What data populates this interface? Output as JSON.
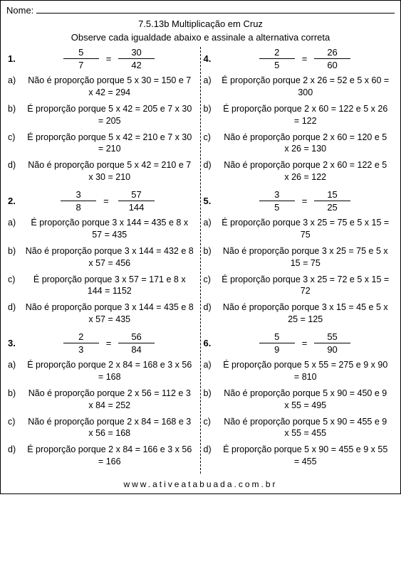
{
  "nameLabel": "Nome:",
  "title": "7.5.13b Multiplicação em Cruz",
  "subtitle": "Observe cada igualdade abaixo e assinale a alternativa correta",
  "optionLabels": [
    "a)",
    "b)",
    "c)",
    "d)"
  ],
  "eqSign": "=",
  "questions": [
    {
      "num": "1.",
      "f1n": "5",
      "f1d": "7",
      "f2n": "30",
      "f2d": "42",
      "opts": [
        "Não é proporção porque 5 x 30 = 150 e 7 x 42 = 294",
        "É proporção porque 5 x 42 = 205 e 7 x 30 = 205",
        "É proporção porque 5 x 42 = 210 e 7 x 30 = 210",
        "Não é proporção porque 5 x 42 = 210 e 7 x 30 = 210"
      ]
    },
    {
      "num": "2.",
      "f1n": "3",
      "f1d": "8",
      "f2n": "57",
      "f2d": "144",
      "opts": [
        "É proporção porque 3 x 144 = 435 e 8 x 57 = 435",
        "Não é proporção porque 3 x 144 = 432 e 8 x 57 = 456",
        "É proporção porque 3 x 57 = 171 e 8 x 144 = 1152",
        "Não é proporção porque 3 x 144 = 435 e 8 x 57 = 435"
      ]
    },
    {
      "num": "3.",
      "f1n": "2",
      "f1d": "3",
      "f2n": "56",
      "f2d": "84",
      "opts": [
        "É proporção porque 2 x 84 = 168 e 3 x 56 = 168",
        "Não é proporção porque 2 x 56 = 112 e 3 x 84 = 252",
        "Não é proporção porque 2 x 84 = 168 e 3 x 56 = 168",
        "É proporção porque 2 x 84 = 166 e 3 x 56 = 166"
      ]
    },
    {
      "num": "4.",
      "f1n": "2",
      "f1d": "5",
      "f2n": "26",
      "f2d": "60",
      "opts": [
        "É proporção porque 2 x 26 = 52 e 5 x 60 = 300",
        "É proporção porque 2 x 60 = 122 e 5 x 26 = 122",
        "Não é proporção porque 2 x 60 = 120 e 5 x 26 = 130",
        "Não é proporção porque 2 x 60 = 122 e 5 x 26 = 122"
      ]
    },
    {
      "num": "5.",
      "f1n": "3",
      "f1d": "5",
      "f2n": "15",
      "f2d": "25",
      "opts": [
        "É proporção porque 3 x 25 = 75 e 5 x 15 = 75",
        "Não é proporção porque 3 x 25 = 75 e 5 x 15 = 75",
        "É proporção porque 3 x 25 = 72 e 5 x 15 = 72",
        "Não é proporção porque 3 x 15 = 45 e 5 x 25 = 125"
      ]
    },
    {
      "num": "6.",
      "f1n": "5",
      "f1d": "9",
      "f2n": "55",
      "f2d": "90",
      "opts": [
        "É proporção porque 5 x 55 = 275 e 9 x 90 = 810",
        "Não é proporção porque 5 x 90 = 450 e 9 x 55 = 495",
        "Não é proporção porque 5 x 90 = 455 e 9 x 55 = 455",
        "É proporção porque 5 x 90 = 455 e 9 x 55 = 455"
      ]
    }
  ],
  "footer": "www.ativeatabuada.com.br"
}
